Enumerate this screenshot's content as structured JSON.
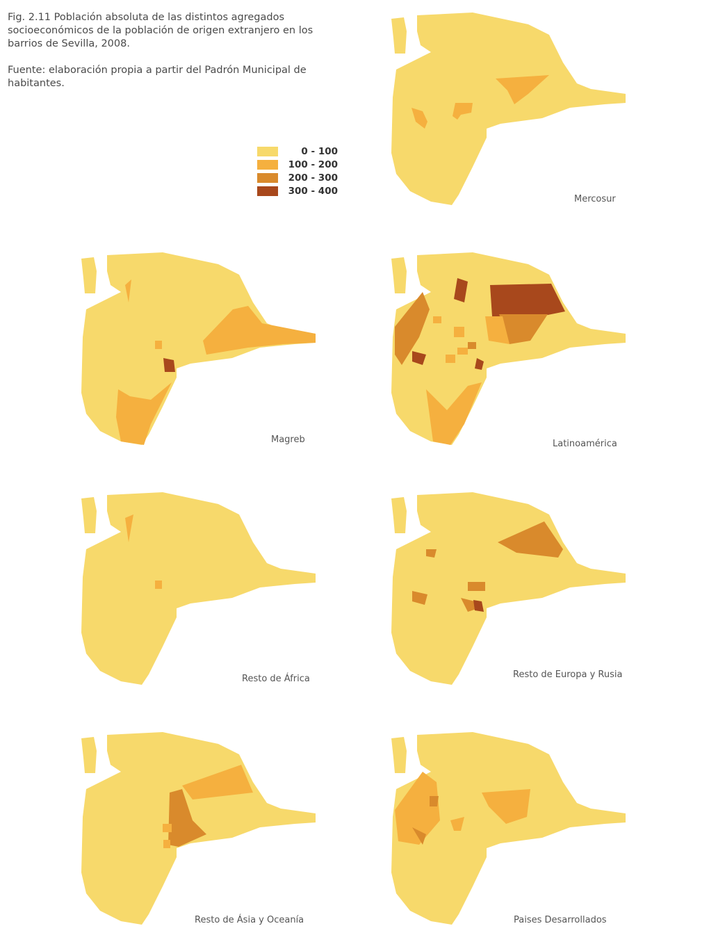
{
  "caption": {
    "title": "Fig. 2.11  Población absoluta de las distintos agregados socioeconómicos de la población de origen extranjero en los barrios de Sevilla, 2008.",
    "source": "Fuente: elaboración propia a partir del Padrón Municipal de habitantes."
  },
  "legend": [
    {
      "label": "0 - 100",
      "color": "#f7d96b"
    },
    {
      "label": "100 - 200",
      "color": "#f5b03f"
    },
    {
      "label": "200 - 300",
      "color": "#d98a2c"
    },
    {
      "label": "300 - 400",
      "color": "#a8481c"
    }
  ],
  "maps": [
    {
      "title": "Mercosur"
    },
    {
      "title": "Magreb"
    },
    {
      "title": "Latinoamérica"
    },
    {
      "title": "Resto de África"
    },
    {
      "title": "Resto de Europa y Rusia"
    },
    {
      "title": "Resto de Ásia y Oceanía"
    },
    {
      "title": "Paises Desarrollados"
    }
  ]
}
